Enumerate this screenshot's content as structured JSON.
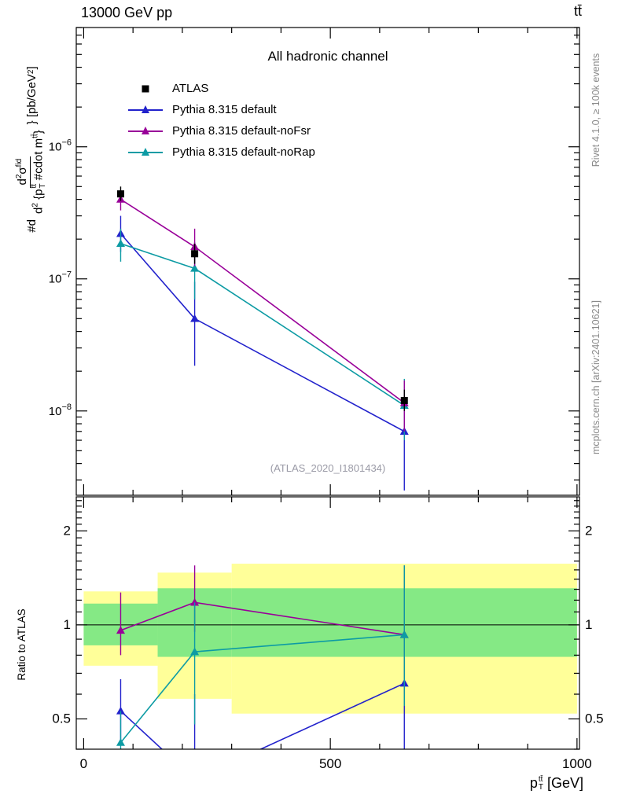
{
  "header": {
    "left": "13000 GeV pp",
    "right": "tt̄"
  },
  "side_notes": {
    "top_rotated": "Rivet 4.1.0, ≥ 100k events",
    "bottom_rotated": "mcplots.cern.ch [arXiv:2401.10621]"
  },
  "watermark": "(ATLAS_2020_I1801434)",
  "colors": {
    "atlas": "#000000",
    "pythia_default": "#2222cc",
    "pythia_nofsr": "#990099",
    "pythia_norap": "#0d9ba4",
    "band_yellow": "#ffff99",
    "band_green": "#85e985"
  },
  "labels": {
    "ylabel_rich": [
      {
        "t": "#d "
      },
      {
        "frac": {
          "num": [
            {
              "t": "d"
            },
            {
              "t": "2",
              "v": "sup"
            },
            {
              "t": "σ"
            },
            {
              "t": "fid",
              "v": "sup"
            }
          ],
          "den": [
            {
              "t": "d"
            },
            {
              "t": "2",
              "v": "sup"
            },
            {
              "t": " {"
            },
            {
              "base": "p",
              "stack": {
                "top": "tt̄",
                "bottom": "T"
              }
            },
            {
              "t": " #cdot m"
            },
            {
              "t": "tt̄",
              "v": "sup"
            },
            {
              "t": "}"
            }
          ]
        }
      },
      {
        "t": "} [pb/GeV"
      },
      {
        "t": "2",
        "v": "sup"
      },
      {
        "t": "]"
      }
    ],
    "xlabel_rich": [
      {
        "base": "p",
        "stack": {
          "top": "tt̄",
          "bottom": "T"
        }
      },
      {
        "t": " [GeV]"
      }
    ]
  },
  "chart_data": {
    "type": "line",
    "title": "All hadronic channel",
    "xlabel": "p_T^tt̄ [GeV]",
    "xlim": [
      0,
      1000
    ],
    "xticks": [
      0,
      500,
      1000
    ],
    "xtick_labels": [
      "0",
      "500",
      "1000"
    ],
    "x": [
      75,
      225,
      650
    ],
    "top_panel": {
      "ylabel": "#d d²σ^fid / d²{p_T^tt̄ #cdot m^tt̄} [pb/GeV²]",
      "yscale": "log",
      "ylim": [
        2.3e-09,
        8e-06
      ],
      "ytick_exponents": [
        -6,
        -7,
        -8
      ],
      "ytick_labels": [
        {
          "base": "10",
          "exp": "−6"
        },
        {
          "base": "10",
          "exp": "−7"
        },
        {
          "base": "10",
          "exp": "−8"
        }
      ],
      "series": [
        {
          "name": "ATLAS",
          "marker": "square",
          "color": "#000000",
          "values": [
            4.4e-07,
            1.55e-07,
            1.2e-08
          ],
          "err_lo": [
            3.9e-07,
            1.3e-07,
            1e-08
          ],
          "err_hi": [
            5e-07,
            1.85e-07,
            1.45e-08
          ]
        },
        {
          "name": "Pythia 8.315 default",
          "marker": "triangle",
          "color": "#2222cc",
          "values": [
            2.2e-07,
            5e-08,
            7e-09
          ],
          "err_lo": [
            1.6e-07,
            2.2e-08,
            2.5e-09
          ],
          "err_hi": [
            3e-07,
            9.5e-08,
            1.3e-08
          ]
        },
        {
          "name": "Pythia 8.315 default-noFsr",
          "marker": "triangle",
          "color": "#990099",
          "values": [
            4e-07,
            1.75e-07,
            1.15e-08
          ],
          "err_lo": [
            3.3e-07,
            1.25e-07,
            7e-09
          ],
          "err_hi": [
            4.7e-07,
            2.4e-07,
            1.7e-08
          ]
        },
        {
          "name": "Pythia 8.315 default-noRap",
          "marker": "triangle",
          "color": "#0d9ba4",
          "values": [
            1.85e-07,
            1.2e-07,
            1.1e-08
          ],
          "err_lo": [
            1.35e-07,
            7e-08,
            6e-09
          ],
          "err_hi": [
            2.4e-07,
            1.9e-07,
            1.75e-08
          ]
        }
      ]
    },
    "ratio_panel": {
      "ylabel": "Ratio to ATLAS",
      "yscale": "log",
      "ylim": [
        0.4,
        2.57
      ],
      "yticks": [
        0.5,
        1,
        2
      ],
      "ytick_labels": [
        "0.5",
        "1",
        "2"
      ],
      "bands": {
        "bins": [
          [
            0,
            150
          ],
          [
            150,
            300
          ],
          [
            300,
            1000
          ]
        ],
        "yellow": [
          [
            0.74,
            1.28
          ],
          [
            0.58,
            1.47
          ],
          [
            0.52,
            1.57
          ]
        ],
        "green": [
          [
            0.86,
            1.17
          ],
          [
            0.79,
            1.31
          ],
          [
            0.79,
            1.31
          ]
        ]
      },
      "series": [
        {
          "name": "Pythia 8.315 default",
          "marker": "triangle",
          "color": "#2222cc",
          "values": [
            0.53,
            0.32,
            0.65
          ],
          "err_lo": [
            0.42,
            0.3,
            0.4
          ],
          "err_hi": [
            0.67,
            0.6,
            1.55
          ]
        },
        {
          "name": "Pythia 8.315 default-noFsr",
          "marker": "triangle",
          "color": "#990099",
          "values": [
            0.96,
            1.18,
            0.93
          ],
          "err_lo": [
            0.8,
            0.95,
            0.6
          ],
          "err_hi": [
            1.27,
            1.55,
            1.4
          ]
        },
        {
          "name": "Pythia 8.315 default-noRap",
          "marker": "triangle",
          "color": "#0d9ba4",
          "values": [
            0.42,
            0.82,
            0.93
          ],
          "err_lo": [
            0.33,
            0.48,
            0.55
          ],
          "err_hi": [
            0.53,
            1.18,
            1.55
          ]
        }
      ]
    }
  }
}
